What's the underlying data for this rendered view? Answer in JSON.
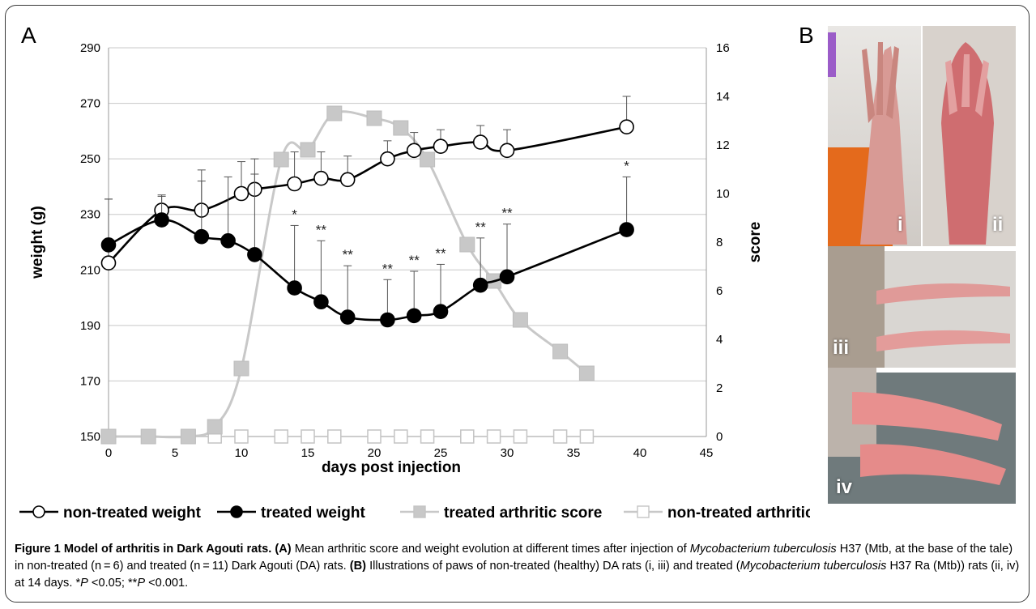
{
  "panel_a_letter": "A",
  "panel_b_letter": "B",
  "photo_labels": [
    "i",
    "ii",
    "iii",
    "iv"
  ],
  "caption": {
    "fig_label": "Figure 1 Model of arthritis in Dark Agouti rats.",
    "a_tag": "(A)",
    "seg1": " Mean arthritic score and weight evolution at different times after injection of ",
    "species1": "Mycobacterium tuberculosis",
    "seg2": " H37 (Mtb, at the base of the tale) in non-treated (n = 6) and treated (n = 11) Dark Agouti (DA) rats. ",
    "b_tag": "(B)",
    "seg3": " Illustrations of paws of non-treated (healthy) DA rats (i, iii) and treated (",
    "species2": "Mycobacterium tuberculosis",
    "seg4": " H37 Ra (Mtb)) rats (ii, iv) at 14 days. *",
    "p1": "P",
    "seg5": " <0.05; **",
    "p2": "P",
    "seg6": " <0.001."
  },
  "chart_data": {
    "type": "line",
    "xlabel": "days post injection",
    "ylabel": "weight (g)",
    "y2label": "score",
    "xlim": [
      0,
      45
    ],
    "ylim": [
      150,
      290
    ],
    "y2lim": [
      0,
      16
    ],
    "xticks": [
      0,
      5,
      10,
      15,
      20,
      25,
      30,
      35,
      40,
      45
    ],
    "yticks": [
      150,
      170,
      190,
      210,
      230,
      250,
      270,
      290
    ],
    "y2ticks": [
      0,
      2,
      4,
      6,
      8,
      10,
      12,
      14,
      16
    ],
    "grid": true,
    "legend_position": "bottom",
    "series": [
      {
        "name": "non-treated weight",
        "axis": "left",
        "color": "#000000",
        "marker": "open-circle",
        "x": [
          0,
          4,
          7,
          10,
          11,
          14,
          16,
          18,
          21,
          23,
          25,
          28,
          30,
          39
        ],
        "y": [
          212.5,
          231.5,
          231.5,
          237.5,
          239,
          241,
          243,
          242.5,
          250,
          253,
          254.5,
          256,
          253,
          261.5
        ],
        "err": [
          23,
          5.5,
          14.5,
          11.5,
          11,
          11.5,
          9.5,
          8.5,
          6.5,
          6.5,
          6,
          6,
          7.5,
          11
        ]
      },
      {
        "name": "treated weight",
        "axis": "left",
        "color": "#000000",
        "marker": "filled-circle",
        "x": [
          0,
          4,
          7,
          9,
          11,
          14,
          16,
          18,
          21,
          23,
          25,
          28,
          30,
          39
        ],
        "y": [
          219,
          228,
          222,
          220.5,
          215.5,
          203.5,
          198.5,
          193,
          192,
          193.5,
          195,
          204.5,
          207.5,
          224.5
        ],
        "err": [
          16.5,
          8.5,
          20,
          23,
          29,
          22.5,
          22,
          18.5,
          14.5,
          16,
          17,
          17,
          19,
          19
        ],
        "sig": [
          "",
          "",
          "",
          "",
          "",
          "*",
          "**",
          "**",
          "**",
          "**",
          "**",
          "**",
          "**",
          "*"
        ]
      },
      {
        "name": "treated arthritic score",
        "axis": "right",
        "color": "#c8c8c8",
        "marker": "filled-square",
        "x": [
          0,
          3,
          6,
          8,
          10,
          13,
          15,
          17,
          20,
          22,
          24,
          27,
          29,
          31,
          34,
          36
        ],
        "y": [
          0,
          0,
          0,
          0.4,
          2.8,
          11.4,
          11.8,
          13.3,
          13.1,
          12.7,
          11.4,
          7.9,
          6.4,
          4.8,
          3.5,
          2.6
        ]
      },
      {
        "name": "non-treated arthritic score",
        "axis": "right",
        "color": "#c8c8c8",
        "marker": "open-square",
        "x": [
          0,
          3,
          6,
          8,
          10,
          13,
          15,
          17,
          20,
          22,
          24,
          27,
          29,
          31,
          34,
          36
        ],
        "y": [
          0,
          0,
          0,
          0,
          0,
          0,
          0,
          0,
          0,
          0,
          0,
          0,
          0,
          0,
          0,
          0
        ]
      }
    ]
  }
}
